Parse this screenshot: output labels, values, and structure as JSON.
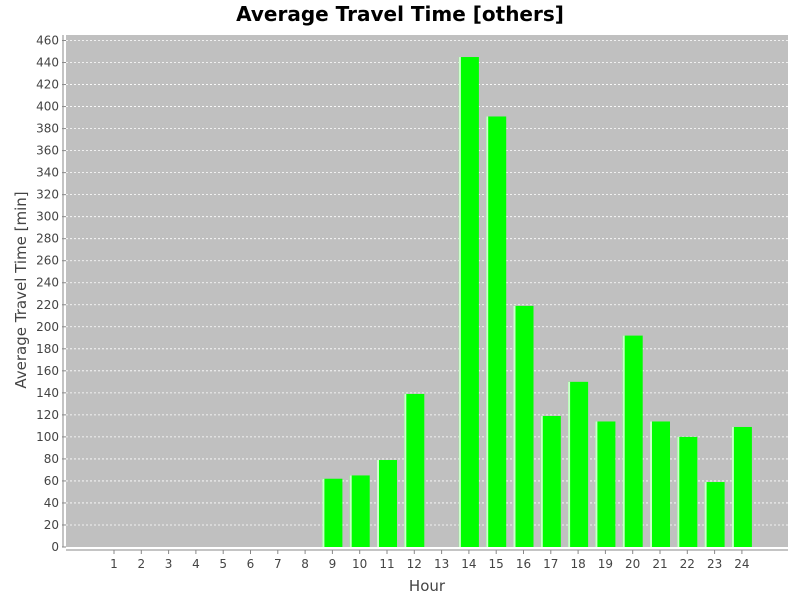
{
  "chart_data": {
    "type": "bar",
    "title": "Average Travel Time [others]",
    "xlabel": "Hour",
    "ylabel": "Average Travel Time [min]",
    "categories": [
      "1",
      "2",
      "3",
      "4",
      "5",
      "6",
      "7",
      "8",
      "9",
      "10",
      "11",
      "12",
      "13",
      "14",
      "15",
      "16",
      "17",
      "18",
      "19",
      "20",
      "21",
      "22",
      "23",
      "24"
    ],
    "values": [
      0,
      0,
      0,
      0,
      0,
      0,
      0,
      0,
      62,
      65,
      79,
      139,
      0,
      445,
      391,
      219,
      119,
      150,
      114,
      192,
      114,
      100,
      59,
      109
    ],
    "ylim": [
      0,
      465
    ],
    "yticks": [
      0,
      20,
      40,
      60,
      80,
      100,
      120,
      140,
      160,
      180,
      200,
      220,
      240,
      260,
      280,
      300,
      320,
      340,
      360,
      380,
      400,
      420,
      440,
      460
    ],
    "grid": true,
    "legend": "none",
    "colors": {
      "plot_background": "#c0c0c0",
      "bar": "#00ff00",
      "bar_highlight": "#ccffcc",
      "gridline": "#ffffff",
      "axis": "#888888"
    }
  }
}
